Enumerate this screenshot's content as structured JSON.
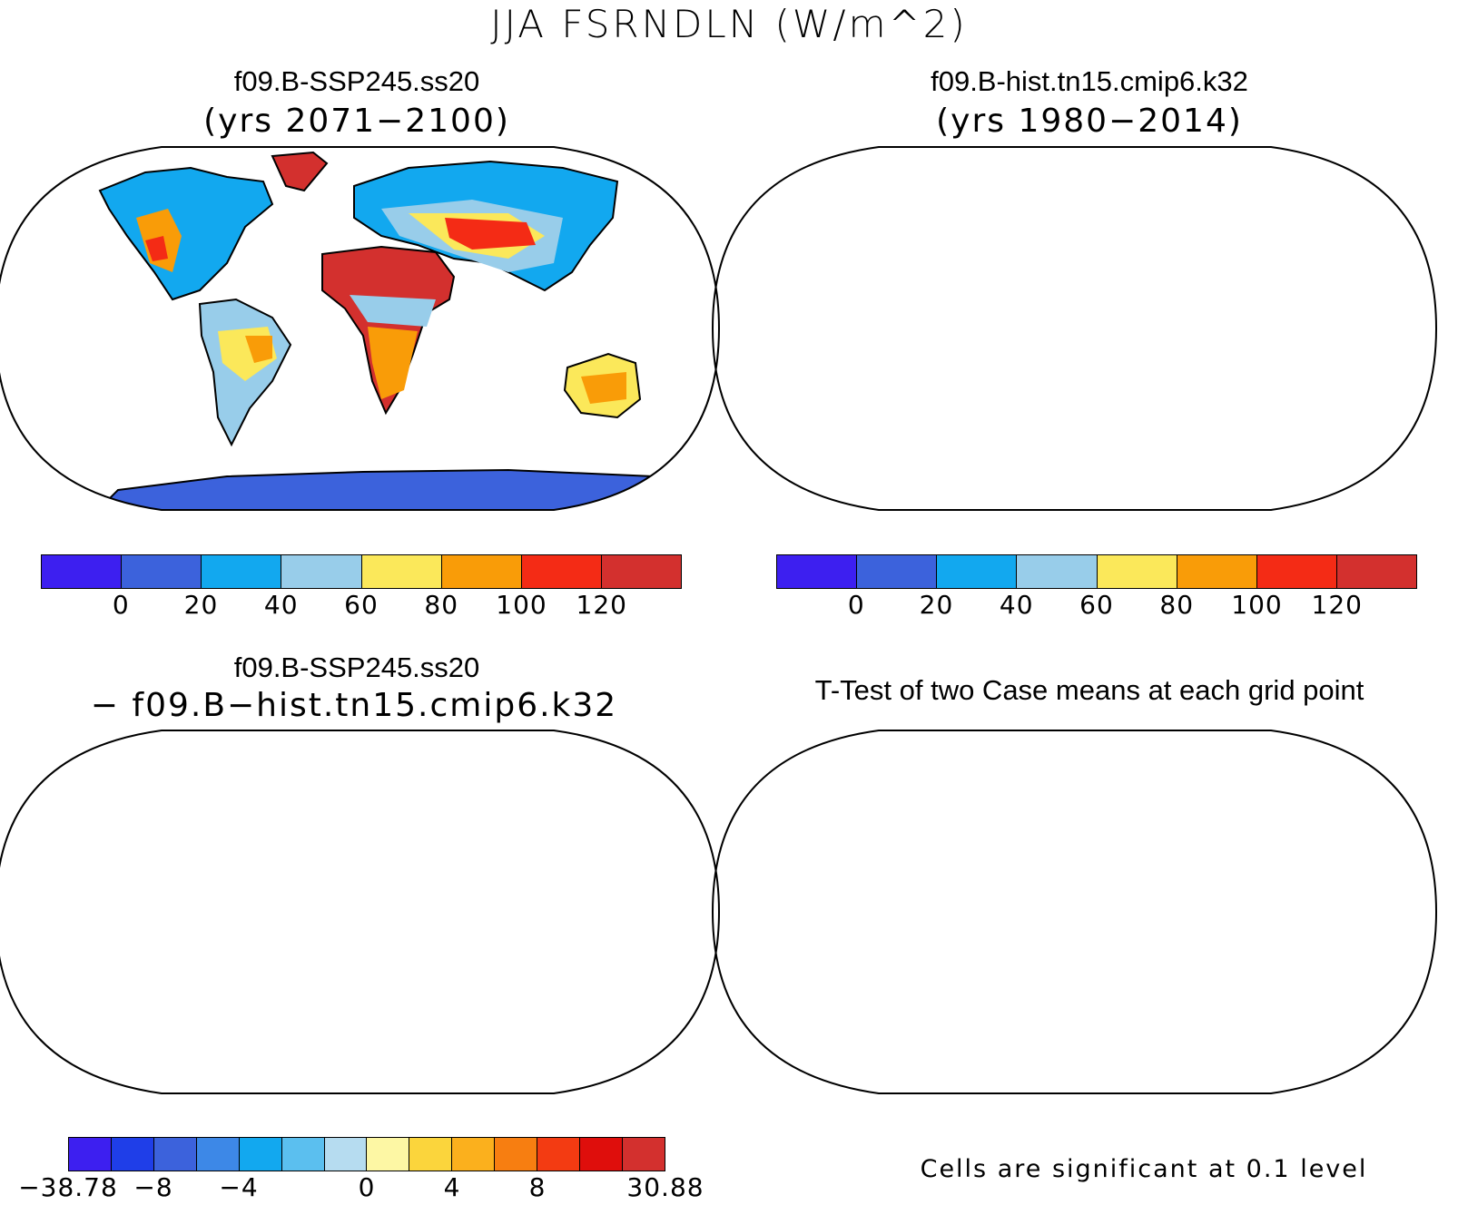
{
  "title": "JJA FSRNDLN (W/m^2)",
  "panels": [
    {
      "id": "ssp",
      "title": "f09.B-SSP245.ss20",
      "subtitle": "(yrs 2071−2100)"
    },
    {
      "id": "hist",
      "title": "f09.B-hist.tn15.cmip6.k32",
      "subtitle": "(yrs 1980−2014)"
    },
    {
      "id": "diff",
      "title": "f09.B-SSP245.ss20",
      "subtitle": "− f09.B−hist.tn15.cmip6.k32"
    },
    {
      "id": "ttest",
      "title": "T-Test of two Case means at each grid point",
      "subtitle": ""
    }
  ],
  "colorbar_main": {
    "colors": [
      "#3d1ff0",
      "#3c62dc",
      "#12a8ef",
      "#98cdea",
      "#fbe85a",
      "#f99c08",
      "#f42b15",
      "#d3302e"
    ],
    "ticks": [
      "0",
      "20",
      "40",
      "60",
      "80",
      "100",
      "120"
    ]
  },
  "colorbar_diff": {
    "colors": [
      "#3d1ff0",
      "#1f3ee8",
      "#3c62dc",
      "#3d88e7",
      "#12a8ef",
      "#5bbfef",
      "#b6dcf0",
      "#fdf7a4",
      "#fbd53c",
      "#fbb01d",
      "#f77e11",
      "#f33b12",
      "#df0e0c",
      "#d3302e"
    ],
    "ticks": [
      "−38.78",
      "−8",
      "−4",
      "0",
      "4",
      "8",
      "30.88"
    ]
  },
  "significance_note": "Cells are significant at 0.1 level",
  "significance_color": "#ee0000"
}
